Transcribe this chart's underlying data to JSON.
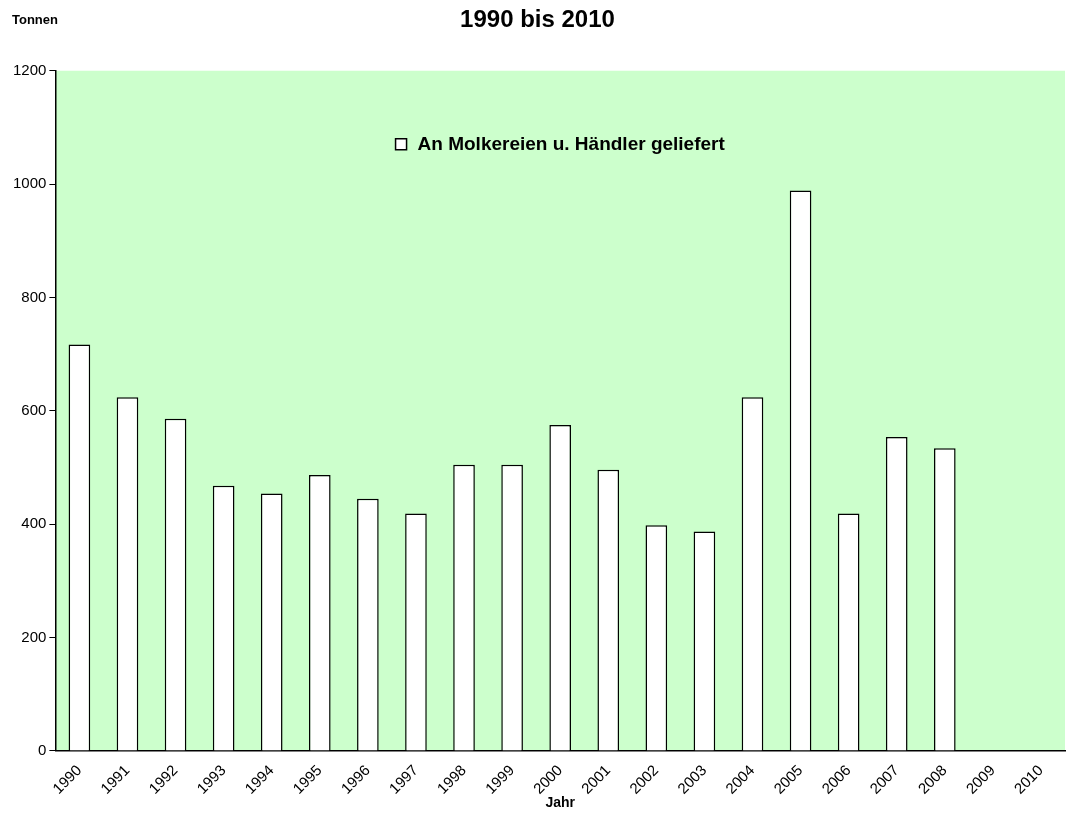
{
  "chart_data": {
    "type": "bar",
    "title": "1990 bis 2010",
    "xlabel": "Jahr",
    "ylabel": "Tonnen",
    "categories": [
      "1990",
      "1991",
      "1992",
      "1993",
      "1994",
      "1995",
      "1996",
      "1997",
      "1998",
      "1999",
      "2000",
      "2001",
      "2002",
      "2003",
      "2004",
      "2005",
      "2006",
      "2007",
      "2008",
      "2009",
      "2010"
    ],
    "series": [
      {
        "name": "An Molkereien u. Händler geliefert",
        "color": "#ffffff",
        "values": [
          717,
          624,
          586,
          468,
          454,
          487,
          445,
          419,
          505,
          505,
          575,
          496,
          398,
          387,
          624,
          989,
          419,
          554,
          534,
          null,
          null
        ]
      }
    ],
    "ylim": [
      0,
      1200
    ],
    "yticks": [
      0,
      200,
      400,
      600,
      800,
      1000,
      1200
    ],
    "grid": false,
    "legend": "top"
  }
}
